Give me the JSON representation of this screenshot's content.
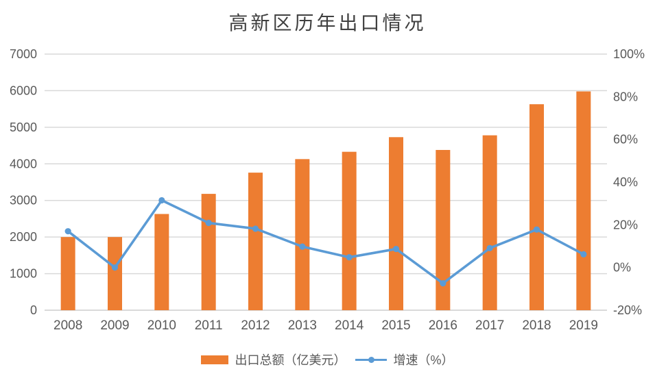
{
  "title": "高新区历年出口情况",
  "chart_data": {
    "type": "bar+line",
    "title": "高新区历年出口情况",
    "categories": [
      "2008",
      "2009",
      "2010",
      "2011",
      "2012",
      "2013",
      "2014",
      "2015",
      "2016",
      "2017",
      "2018",
      "2019"
    ],
    "series": [
      {
        "name": "出口总额（亿美元）",
        "type": "bar",
        "axis": "left",
        "color": "#ED7D31",
        "values": [
          2000,
          2000,
          2630,
          3180,
          3760,
          4130,
          4330,
          4730,
          4380,
          4780,
          5630,
          5980
        ]
      },
      {
        "name": "增速（%）",
        "type": "line",
        "axis": "right",
        "color": "#5B9BD5",
        "values": [
          17.0,
          0.0,
          31.5,
          20.9,
          18.2,
          9.8,
          4.8,
          8.7,
          -7.4,
          9.1,
          17.8,
          6.2
        ]
      }
    ],
    "axes": {
      "left": {
        "min": 0,
        "max": 7000,
        "tick_labels": [
          "0",
          "1000",
          "2000",
          "3000",
          "4000",
          "5000",
          "6000",
          "7000"
        ]
      },
      "right": {
        "min": -20,
        "max": 100,
        "tick_labels": [
          "-20%",
          "0%",
          "20%",
          "40%",
          "60%",
          "80%",
          "100%"
        ]
      },
      "x": {
        "labels": [
          "2008",
          "2009",
          "2010",
          "2011",
          "2012",
          "2013",
          "2014",
          "2015",
          "2016",
          "2017",
          "2018",
          "2019"
        ]
      }
    },
    "grid": true,
    "legend_position": "bottom",
    "colors": {
      "bar": "#ED7D31",
      "line": "#5B9BD5",
      "gridline": "#D9D9D9",
      "axis_line": "#D6D6D6",
      "axis_label": "#595959",
      "title": "#404040",
      "background": "#FFFFFF"
    }
  }
}
